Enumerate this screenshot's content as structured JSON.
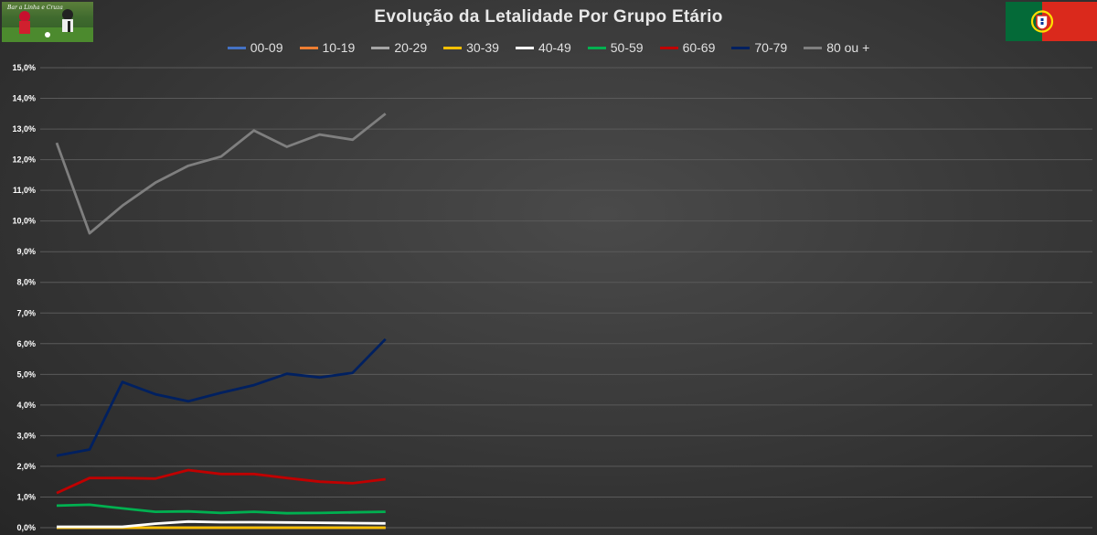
{
  "title": "Evolução da Letalidade Por Grupo Etário",
  "logo": {
    "text": "Bar a Linha e Cruza"
  },
  "flag": {
    "country": "Portugal",
    "green": "#046A38",
    "red": "#DA291C",
    "icon": "portugal-flag-icon"
  },
  "chart_data": {
    "type": "line",
    "title": "Evolução da Letalidade Por Grupo Etário",
    "xlabel": "",
    "ylabel": "",
    "ylim": [
      0,
      15
    ],
    "y_ticks": [
      "0,0%",
      "1,0%",
      "2,0%",
      "3,0%",
      "4,0%",
      "5,0%",
      "6,0%",
      "7,0%",
      "8,0%",
      "9,0%",
      "10,0%",
      "11,0%",
      "12,0%",
      "13,0%",
      "14,0%",
      "15,0%"
    ],
    "grid": true,
    "legend_position": "top",
    "x_total_slots": 32,
    "series": [
      {
        "name": "00-09",
        "color": "#4472C4",
        "values": [
          0,
          0,
          0,
          0,
          0,
          0,
          0,
          0,
          0,
          0,
          0
        ]
      },
      {
        "name": "10-19",
        "color": "#ED7D31",
        "values": [
          0,
          0,
          0,
          0,
          0,
          0,
          0,
          0,
          0,
          0,
          0
        ]
      },
      {
        "name": "20-29",
        "color": "#A5A5A5",
        "values": [
          0,
          0,
          0,
          0,
          0,
          0,
          0,
          0,
          0,
          0,
          0
        ]
      },
      {
        "name": "30-39",
        "color": "#FFC000",
        "values": [
          0,
          0,
          0,
          0,
          0,
          0,
          0,
          0,
          0,
          0,
          0
        ]
      },
      {
        "name": "40-49",
        "color": "#FFFFFF",
        "values": [
          0.03,
          0.03,
          0.03,
          0.13,
          0.2,
          0.18,
          0.18,
          0.17,
          0.16,
          0.15,
          0.14
        ]
      },
      {
        "name": "50-59",
        "color": "#00B050",
        "values": [
          0.72,
          0.75,
          0.63,
          0.52,
          0.53,
          0.48,
          0.52,
          0.47,
          0.48,
          0.5,
          0.52
        ]
      },
      {
        "name": "60-69",
        "color": "#C00000",
        "values": [
          1.13,
          1.62,
          1.62,
          1.6,
          1.88,
          1.75,
          1.75,
          1.62,
          1.5,
          1.45,
          1.58
        ]
      },
      {
        "name": "70-79",
        "color": "#002060",
        "values": [
          2.35,
          2.55,
          4.75,
          4.35,
          4.12,
          4.4,
          4.65,
          5.02,
          4.9,
          5.05,
          6.15
        ]
      },
      {
        "name": "80 ou +",
        "color": "#7F7F7F",
        "values": [
          12.55,
          9.6,
          10.5,
          11.25,
          11.8,
          12.1,
          12.95,
          12.42,
          12.82,
          12.65,
          13.5
        ]
      }
    ]
  }
}
